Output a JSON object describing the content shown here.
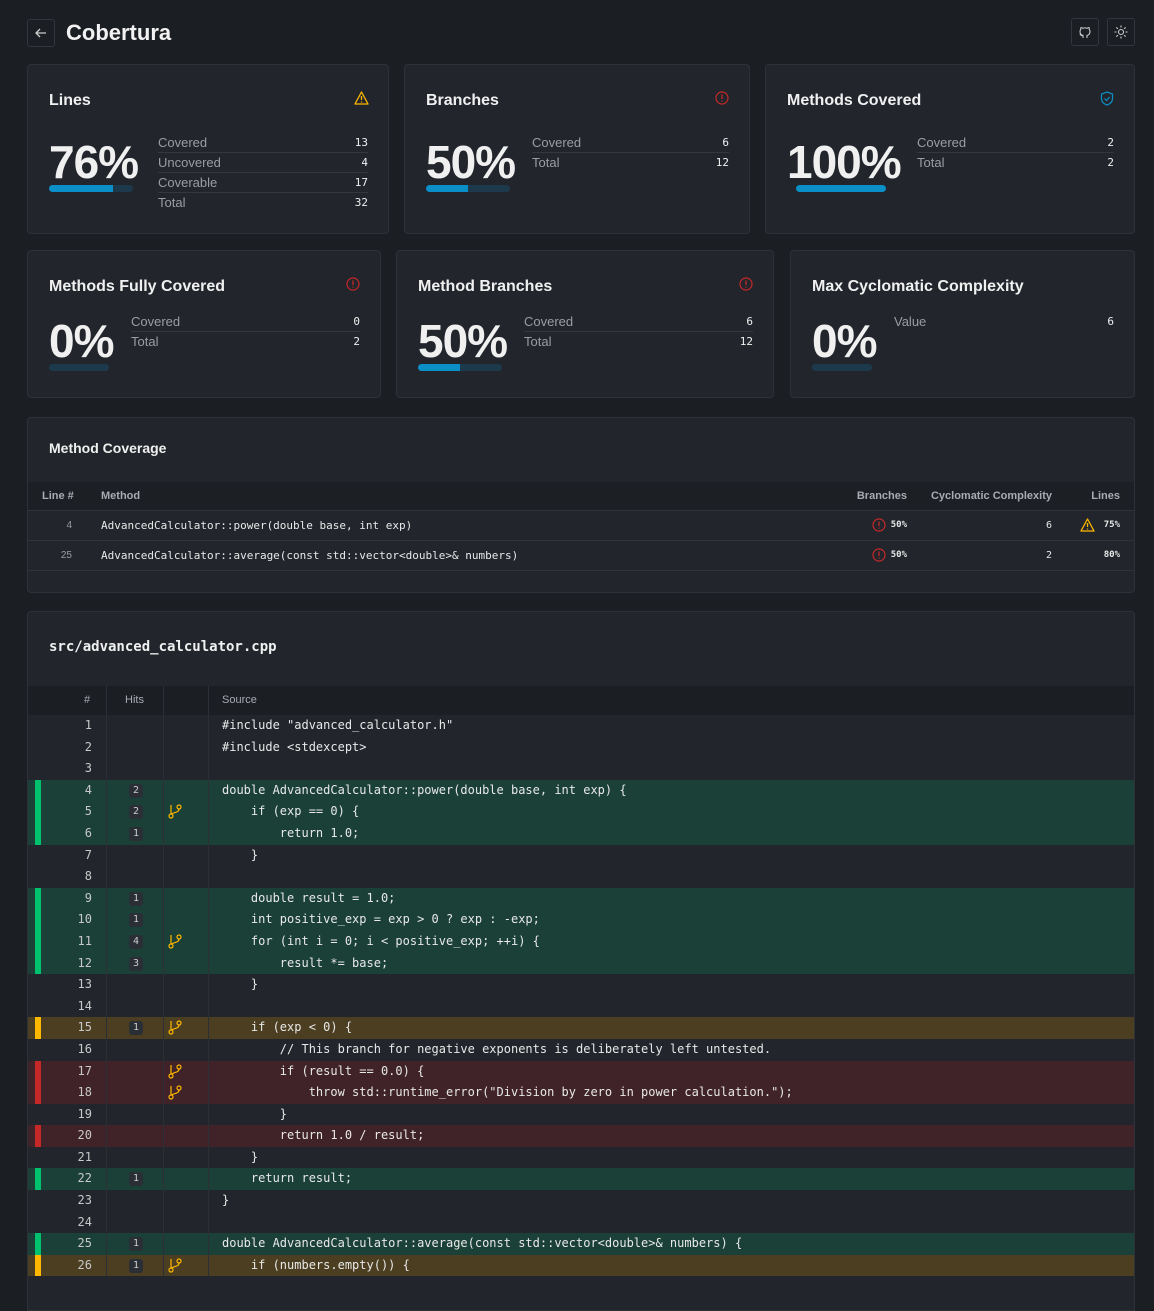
{
  "header": {
    "title": "Cobertura",
    "back_icon": "arrow-left-icon",
    "github_icon": "github-icon",
    "theme_icon": "sun-icon"
  },
  "colors": {
    "accent": "#0a8fc7",
    "covered": "#00c16e",
    "partial": "#ffb800",
    "uncovered": "#c62828",
    "warning": "#ffb800",
    "danger": "#c62828",
    "ok": "#0a8fc7"
  },
  "cards": [
    {
      "title": "Lines",
      "percent": "76%",
      "progress": 76,
      "status": "warning",
      "icon": "warning-triangle-icon",
      "stats": [
        {
          "label": "Covered",
          "value": "13"
        },
        {
          "label": "Uncovered",
          "value": "4"
        },
        {
          "label": "Coverable",
          "value": "17"
        },
        {
          "label": "Total",
          "value": "32"
        }
      ]
    },
    {
      "title": "Branches",
      "percent": "50%",
      "progress": 50,
      "status": "danger",
      "icon": "alert-circle-icon",
      "stats": [
        {
          "label": "Covered",
          "value": "6"
        },
        {
          "label": "Total",
          "value": "12"
        }
      ]
    },
    {
      "title": "Methods Covered",
      "percent": "100%",
      "progress": 100,
      "status": "ok",
      "icon": "shield-check-icon",
      "stats": [
        {
          "label": "Covered",
          "value": "2"
        },
        {
          "label": "Total",
          "value": "2"
        }
      ]
    },
    {
      "title": "Methods Fully Covered",
      "percent": "0%",
      "progress": 0,
      "status": "danger",
      "icon": "alert-circle-icon",
      "stats": [
        {
          "label": "Covered",
          "value": "0"
        },
        {
          "label": "Total",
          "value": "2"
        }
      ]
    },
    {
      "title": "Method Branches",
      "percent": "50%",
      "progress": 50,
      "status": "danger",
      "icon": "alert-circle-icon",
      "stats": [
        {
          "label": "Covered",
          "value": "6"
        },
        {
          "label": "Total",
          "value": "12"
        }
      ]
    },
    {
      "title": "Max Cyclomatic Complexity",
      "percent": "0%",
      "progress": 0,
      "stats": [
        {
          "label": "Value",
          "value": "6"
        }
      ]
    }
  ],
  "method_coverage": {
    "title": "Method Coverage",
    "columns": [
      "Line #",
      "Method",
      "Branches",
      "Cyclomatic Complexity",
      "Lines"
    ],
    "rows": [
      {
        "line": "4",
        "method": "AdvancedCalculator::power(double base, int exp)",
        "branches": "50%",
        "branch_status": "danger",
        "complexity": "6",
        "lines": "75%",
        "lines_status": "warning"
      },
      {
        "line": "25",
        "method": "AdvancedCalculator::average(const std::vector<double>& numbers)",
        "branches": "50%",
        "branch_status": "danger",
        "complexity": "2",
        "lines": "80%",
        "lines_status": "ok"
      }
    ]
  },
  "file": {
    "name": "src/advanced_calculator.cpp",
    "columns": [
      "#",
      "Hits",
      "",
      "Source"
    ],
    "lines": [
      {
        "n": "1",
        "hits": "",
        "branch": false,
        "status": "",
        "src": "#include \"advanced_calculator.h\""
      },
      {
        "n": "2",
        "hits": "",
        "branch": false,
        "status": "",
        "src": "#include <stdexcept>"
      },
      {
        "n": "3",
        "hits": "",
        "branch": false,
        "status": "",
        "src": ""
      },
      {
        "n": "4",
        "hits": "2",
        "branch": false,
        "status": "covered",
        "src": "double AdvancedCalculator::power(double base, int exp) {"
      },
      {
        "n": "5",
        "hits": "2",
        "branch": true,
        "status": "covered",
        "src": "    if (exp == 0) {"
      },
      {
        "n": "6",
        "hits": "1",
        "branch": false,
        "status": "covered",
        "src": "        return 1.0;"
      },
      {
        "n": "7",
        "hits": "",
        "branch": false,
        "status": "",
        "src": "    }"
      },
      {
        "n": "8",
        "hits": "",
        "branch": false,
        "status": "",
        "src": ""
      },
      {
        "n": "9",
        "hits": "1",
        "branch": false,
        "status": "covered",
        "src": "    double result = 1.0;"
      },
      {
        "n": "10",
        "hits": "1",
        "branch": false,
        "status": "covered",
        "src": "    int positive_exp = exp > 0 ? exp : -exp;"
      },
      {
        "n": "11",
        "hits": "4",
        "branch": true,
        "status": "covered",
        "src": "    for (int i = 0; i < positive_exp; ++i) {"
      },
      {
        "n": "12",
        "hits": "3",
        "branch": false,
        "status": "covered",
        "src": "        result *= base;"
      },
      {
        "n": "13",
        "hits": "",
        "branch": false,
        "status": "",
        "src": "    }"
      },
      {
        "n": "14",
        "hits": "",
        "branch": false,
        "status": "",
        "src": ""
      },
      {
        "n": "15",
        "hits": "1",
        "branch": true,
        "status": "partial",
        "src": "    if (exp < 0) {"
      },
      {
        "n": "16",
        "hits": "",
        "branch": false,
        "status": "",
        "src": "        // This branch for negative exponents is deliberately left untested."
      },
      {
        "n": "17",
        "hits": "",
        "branch": true,
        "status": "uncovered",
        "src": "        if (result == 0.0) {"
      },
      {
        "n": "18",
        "hits": "",
        "branch": true,
        "status": "uncovered",
        "src": "            throw std::runtime_error(\"Division by zero in power calculation.\");"
      },
      {
        "n": "19",
        "hits": "",
        "branch": false,
        "status": "",
        "src": "        }"
      },
      {
        "n": "20",
        "hits": "",
        "branch": false,
        "status": "uncovered",
        "src": "        return 1.0 / result;"
      },
      {
        "n": "21",
        "hits": "",
        "branch": false,
        "status": "",
        "src": "    }"
      },
      {
        "n": "22",
        "hits": "1",
        "branch": false,
        "status": "covered",
        "src": "    return result;"
      },
      {
        "n": "23",
        "hits": "",
        "branch": false,
        "status": "",
        "src": "}"
      },
      {
        "n": "24",
        "hits": "",
        "branch": false,
        "status": "",
        "src": ""
      },
      {
        "n": "25",
        "hits": "1",
        "branch": false,
        "status": "covered",
        "src": "double AdvancedCalculator::average(const std::vector<double>& numbers) {"
      },
      {
        "n": "26",
        "hits": "1",
        "branch": true,
        "status": "partial",
        "src": "    if (numbers.empty()) {"
      }
    ]
  }
}
